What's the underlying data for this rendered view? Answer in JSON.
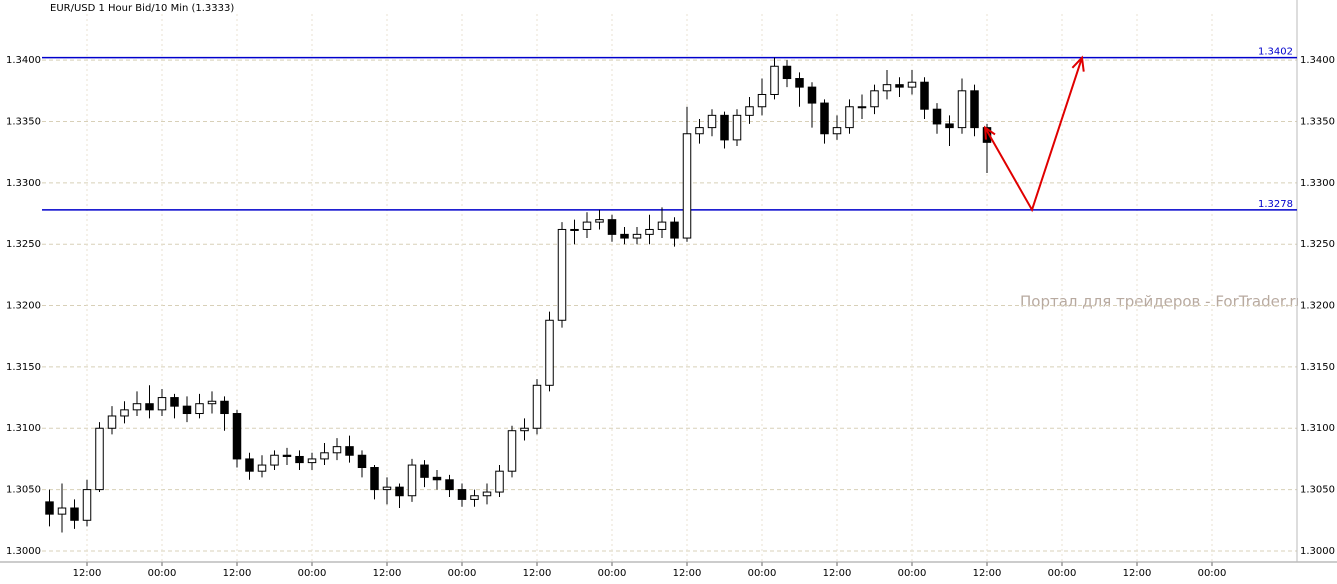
{
  "chart_data": {
    "type": "candlestick",
    "title": "EUR/USD 1 Hour Bid/10 Min (1.3333)",
    "watermark": "Портал для трейдеров - ForTrader.ru",
    "x": [
      6,
      8,
      10,
      12,
      14,
      16,
      18,
      20,
      22,
      24,
      26,
      28,
      30,
      32,
      34,
      36,
      38,
      40,
      42,
      44,
      46,
      48,
      50,
      52,
      54,
      56,
      58,
      60,
      62,
      64,
      66,
      68,
      70,
      72,
      74,
      76,
      78,
      80,
      82,
      84,
      86,
      88,
      90,
      92,
      94,
      96,
      98,
      100,
      102,
      104,
      106,
      108,
      110,
      112,
      114,
      116,
      118,
      120,
      122,
      124,
      126,
      128,
      130,
      132,
      134,
      136,
      138,
      140,
      142,
      144,
      146,
      148,
      150,
      152,
      154,
      156
    ],
    "open": [
      1.304,
      1.303,
      1.3035,
      1.3025,
      1.305,
      1.31,
      1.311,
      1.3115,
      1.312,
      1.3115,
      1.3125,
      1.3118,
      1.3112,
      1.312,
      1.3122,
      1.3112,
      1.3075,
      1.3065,
      1.307,
      1.3078,
      1.3077,
      1.3072,
      1.3075,
      1.308,
      1.3085,
      1.3078,
      1.3068,
      1.305,
      1.3052,
      1.3045,
      1.307,
      1.306,
      1.3058,
      1.305,
      1.3042,
      1.3045,
      1.3048,
      1.3065,
      1.3098,
      1.31,
      1.3135,
      1.3188,
      1.3262,
      1.3262,
      1.3268,
      1.327,
      1.3258,
      1.3255,
      1.3258,
      1.3262,
      1.3268,
      1.3255,
      1.334,
      1.3345,
      1.3355,
      1.3335,
      1.3355,
      1.3362,
      1.3372,
      1.3395,
      1.3385,
      1.3378,
      1.3365,
      1.334,
      1.3345,
      1.3362,
      1.3362,
      1.3375,
      1.338,
      1.3378,
      1.3382,
      1.336,
      1.3348,
      1.3345,
      1.3375,
      1.3345
    ],
    "high": [
      1.305,
      1.3055,
      1.3042,
      1.3058,
      1.3105,
      1.3118,
      1.3122,
      1.313,
      1.3135,
      1.3132,
      1.3128,
      1.3126,
      1.3128,
      1.313,
      1.3126,
      1.3115,
      1.308,
      1.3078,
      1.3082,
      1.3084,
      1.3082,
      1.308,
      1.3088,
      1.3092,
      1.3094,
      1.3082,
      1.307,
      1.306,
      1.3055,
      1.3075,
      1.3074,
      1.3066,
      1.3062,
      1.3055,
      1.305,
      1.3055,
      1.307,
      1.3102,
      1.3108,
      1.314,
      1.3195,
      1.3268,
      1.327,
      1.3276,
      1.3278,
      1.3274,
      1.3264,
      1.3264,
      1.3274,
      1.328,
      1.3272,
      1.3362,
      1.3352,
      1.336,
      1.3358,
      1.336,
      1.337,
      1.3385,
      1.3402,
      1.34,
      1.339,
      1.3382,
      1.3368,
      1.3355,
      1.3368,
      1.3372,
      1.338,
      1.3392,
      1.3386,
      1.3392,
      1.3386,
      1.3365,
      1.3355,
      1.3385,
      1.338,
      1.3348
    ],
    "low": [
      1.302,
      1.3015,
      1.3018,
      1.302,
      1.3048,
      1.3095,
      1.3104,
      1.311,
      1.3108,
      1.311,
      1.3108,
      1.3105,
      1.3108,
      1.3112,
      1.3098,
      1.3068,
      1.3058,
      1.306,
      1.3066,
      1.307,
      1.3066,
      1.3066,
      1.307,
      1.3074,
      1.3072,
      1.306,
      1.3042,
      1.3038,
      1.3035,
      1.304,
      1.3052,
      1.305,
      1.3044,
      1.3036,
      1.3036,
      1.3038,
      1.3044,
      1.306,
      1.309,
      1.3095,
      1.313,
      1.3182,
      1.325,
      1.3255,
      1.3262,
      1.3252,
      1.325,
      1.325,
      1.325,
      1.3255,
      1.3248,
      1.3252,
      1.3332,
      1.3338,
      1.3328,
      1.333,
      1.3348,
      1.3355,
      1.3368,
      1.3378,
      1.3362,
      1.3345,
      1.3332,
      1.3335,
      1.334,
      1.3352,
      1.3356,
      1.3368,
      1.337,
      1.3372,
      1.3352,
      1.334,
      1.333,
      1.334,
      1.3338,
      1.3308
    ],
    "close": [
      1.303,
      1.3035,
      1.3025,
      1.305,
      1.31,
      1.311,
      1.3115,
      1.312,
      1.3115,
      1.3125,
      1.3118,
      1.3112,
      1.312,
      1.3122,
      1.3112,
      1.3075,
      1.3065,
      1.307,
      1.3078,
      1.3077,
      1.3072,
      1.3075,
      1.308,
      1.3085,
      1.3078,
      1.3068,
      1.305,
      1.3052,
      1.3045,
      1.307,
      1.306,
      1.3058,
      1.305,
      1.3042,
      1.3045,
      1.3048,
      1.3065,
      1.3098,
      1.31,
      1.3135,
      1.3188,
      1.3262,
      1.3262,
      1.3268,
      1.327,
      1.3258,
      1.3255,
      1.3258,
      1.3262,
      1.3268,
      1.3255,
      1.334,
      1.3345,
      1.3355,
      1.3335,
      1.3355,
      1.3362,
      1.3372,
      1.3395,
      1.3385,
      1.3378,
      1.3365,
      1.334,
      1.3345,
      1.3362,
      1.3362,
      1.3375,
      1.338,
      1.3378,
      1.3382,
      1.336,
      1.3348,
      1.3345,
      1.3375,
      1.3345,
      1.3333
    ],
    "up_color": "#ffffff",
    "down_color": "#000000",
    "xlim": [
      4.8,
      205.6
    ],
    "ylim": [
      1.2991,
      1.3449
    ],
    "xticks": [
      {
        "value": 12,
        "label": "12:00"
      },
      {
        "value": 24,
        "label": "00:00"
      },
      {
        "value": 36,
        "label": "12:00"
      },
      {
        "value": 48,
        "label": "00:00"
      },
      {
        "value": 60,
        "label": "12:00"
      },
      {
        "value": 72,
        "label": "00:00"
      },
      {
        "value": 84,
        "label": "12:00"
      },
      {
        "value": 96,
        "label": "00:00"
      },
      {
        "value": 108,
        "label": "12:00"
      },
      {
        "value": 120,
        "label": "00:00"
      },
      {
        "value": 132,
        "label": "12:00"
      },
      {
        "value": 144,
        "label": "00:00"
      },
      {
        "value": 156,
        "label": "12:00"
      },
      {
        "value": 168,
        "label": "00:00"
      },
      {
        "value": 180,
        "label": "12:00"
      },
      {
        "value": 192,
        "label": "00:00"
      }
    ],
    "yticks": [
      {
        "value": 1.3,
        "label": "1.3000"
      },
      {
        "value": 1.305,
        "label": "1.3050"
      },
      {
        "value": 1.31,
        "label": "1.3100"
      },
      {
        "value": 1.315,
        "label": "1.3150"
      },
      {
        "value": 1.32,
        "label": "1.3200"
      },
      {
        "value": 1.325,
        "label": "1.3250"
      },
      {
        "value": 1.33,
        "label": "1.3300"
      },
      {
        "value": 1.335,
        "label": "1.3350"
      },
      {
        "value": 1.34,
        "label": "1.3400"
      }
    ],
    "grid": true,
    "levels": [
      {
        "value": 1.3402,
        "color": "#0000cc"
      },
      {
        "value": 1.3278,
        "color": "#0000cc"
      }
    ],
    "arrow": {
      "x": [
        155.7,
        163.2,
        171.2
      ],
      "y": [
        1.3345,
        1.3278,
        1.3402
      ],
      "color": "#e00000"
    }
  }
}
